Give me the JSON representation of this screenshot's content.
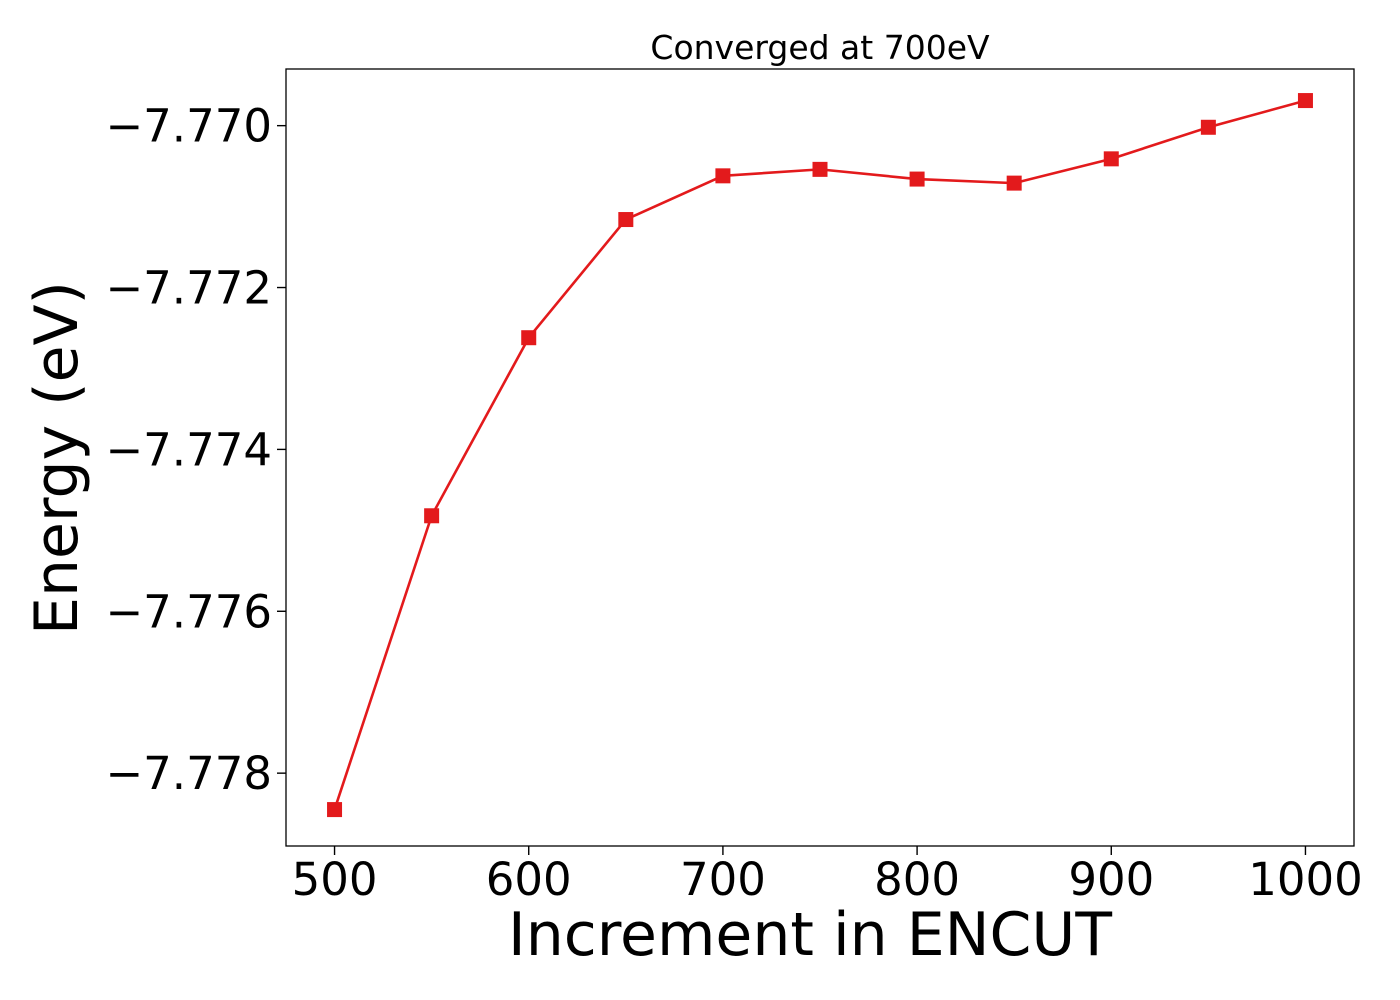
{
  "chart_data": {
    "type": "line",
    "title": "Converged at 700eV",
    "xlabel": "Increment in ENCUT",
    "ylabel": "Energy (eV)",
    "x": [
      500,
      550,
      600,
      650,
      700,
      750,
      800,
      850,
      900,
      950,
      1000
    ],
    "series": [
      {
        "values": [
          -7.77845,
          -7.77482,
          -7.77262,
          -7.77116,
          -7.77062,
          -7.77054,
          -7.77066,
          -7.77071,
          -7.77041,
          -7.77002,
          -7.76969
        ],
        "color": "#e31a1c",
        "marker": "square"
      }
    ],
    "xlim": [
      475,
      1025
    ],
    "ylim": [
      -7.7789,
      -7.7693
    ],
    "xticks": [
      500,
      600,
      700,
      800,
      900,
      1000
    ],
    "xtick_labels": [
      "500",
      "600",
      "700",
      "800",
      "900",
      "1000"
    ],
    "yticks": [
      -7.77,
      -7.772,
      -7.774,
      -7.776,
      -7.778
    ],
    "ytick_labels": [
      "−7.770",
      "−7.772",
      "−7.774",
      "−7.776",
      "−7.778"
    ],
    "grid": false
  }
}
